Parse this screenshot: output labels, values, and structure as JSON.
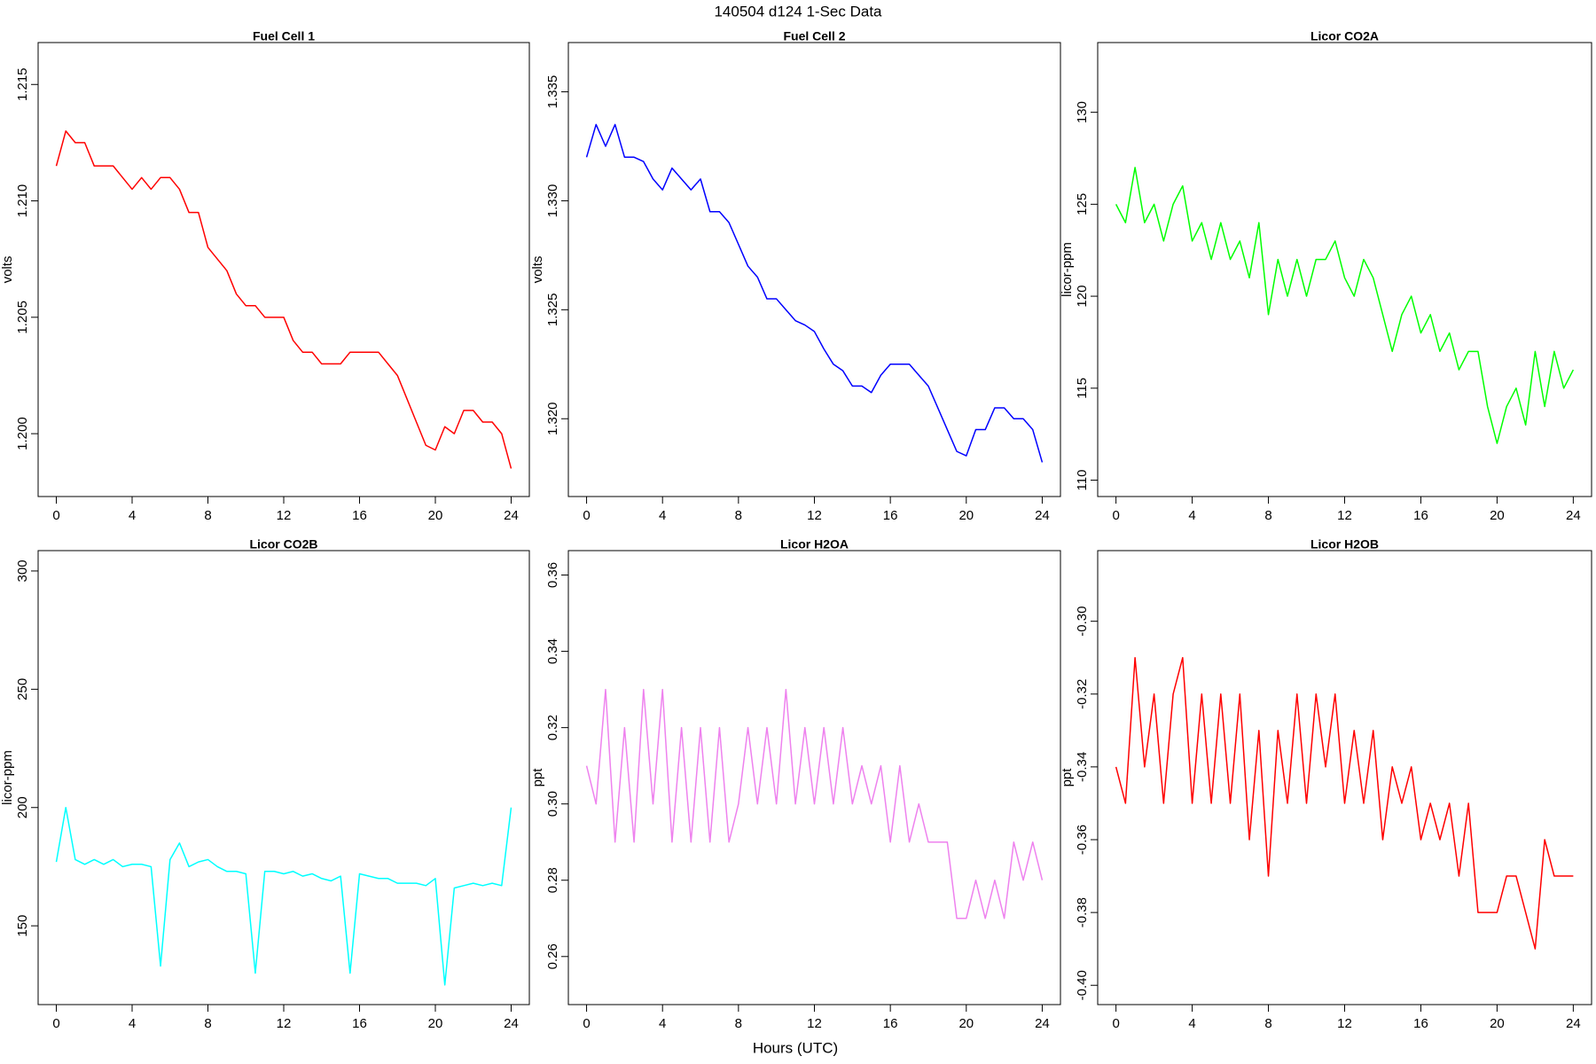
{
  "title": "140504   d124   1-Sec Data",
  "x_label": "Hours (UTC)",
  "chart_data": [
    {
      "type": "line",
      "title": "Fuel Cell 1",
      "y_label": "volts",
      "x": [
        0,
        0.5,
        1,
        1.5,
        2,
        2.5,
        3,
        3.5,
        4,
        4.5,
        5,
        5.5,
        6,
        6.5,
        7,
        7.5,
        8,
        8.5,
        9,
        9.5,
        10,
        10.5,
        11,
        11.5,
        12,
        12.5,
        13,
        13.5,
        14,
        14.5,
        15,
        15.5,
        16,
        16.5,
        17,
        17.5,
        18,
        18.5,
        19,
        19.5,
        20,
        20.5,
        21,
        21.5,
        22,
        22.5,
        23,
        23.5,
        24
      ],
      "series": [
        {
          "name": "Fuel Cell 1",
          "color": "#ff0000",
          "values": [
            1.2115,
            1.213,
            1.2125,
            1.2125,
            1.2115,
            1.2115,
            1.2115,
            1.211,
            1.2105,
            1.211,
            1.2105,
            1.211,
            1.211,
            1.2105,
            1.2095,
            1.2095,
            1.208,
            1.2075,
            1.207,
            1.206,
            1.2055,
            1.2055,
            1.205,
            1.205,
            1.205,
            1.204,
            1.2035,
            1.2035,
            1.203,
            1.203,
            1.203,
            1.2035,
            1.2035,
            1.2035,
            1.2035,
            1.203,
            1.2025,
            1.2015,
            1.2005,
            1.1995,
            1.1993,
            1.2003,
            1.2,
            1.201,
            1.201,
            1.2005,
            1.2005,
            1.2,
            1.1985
          ]
        }
      ],
      "xlim": [
        -0.96,
        24.96
      ],
      "xticks": [
        0,
        4,
        8,
        12,
        16,
        20,
        24
      ],
      "ylim": [
        1.1973,
        1.2168
      ],
      "yticks": [
        {
          "value": 1.2,
          "label": "1.200"
        },
        1.205,
        {
          "value": 1.21,
          "label": "1.210"
        },
        1.215
      ]
    },
    {
      "type": "line",
      "title": "Fuel Cell 2",
      "y_label": "volts",
      "x": [
        0,
        0.5,
        1,
        1.5,
        2,
        2.5,
        3,
        3.5,
        4,
        4.5,
        5,
        5.5,
        6,
        6.5,
        7,
        7.5,
        8,
        8.5,
        9,
        9.5,
        10,
        10.5,
        11,
        11.5,
        12,
        12.5,
        13,
        13.5,
        14,
        14.5,
        15,
        15.5,
        16,
        16.5,
        17,
        17.5,
        18,
        18.5,
        19,
        19.5,
        20,
        20.5,
        21,
        21.5,
        22,
        22.5,
        23,
        23.5,
        24
      ],
      "series": [
        {
          "name": "Fuel Cell 2",
          "color": "#0000ff",
          "values": [
            1.332,
            1.3335,
            1.3325,
            1.3335,
            1.332,
            1.332,
            1.3318,
            1.331,
            1.3305,
            1.3315,
            1.331,
            1.3305,
            1.331,
            1.3295,
            1.3295,
            1.329,
            1.328,
            1.327,
            1.3265,
            1.3255,
            1.3255,
            1.325,
            1.3245,
            1.3243,
            1.324,
            1.3232,
            1.3225,
            1.3222,
            1.3215,
            1.3215,
            1.3212,
            1.322,
            1.3225,
            1.3225,
            1.3225,
            1.322,
            1.3215,
            1.3205,
            1.3195,
            1.3185,
            1.3183,
            1.3195,
            1.3195,
            1.3205,
            1.3205,
            1.32,
            1.32,
            1.3195,
            1.318
          ]
        }
      ],
      "xlim": [
        -0.96,
        24.96
      ],
      "xticks": [
        0,
        4,
        8,
        12,
        16,
        20,
        24
      ],
      "ylim": [
        1.31643,
        1.33726
      ],
      "yticks": [
        {
          "value": 1.32,
          "label": "1.320"
        },
        1.325,
        {
          "value": 1.33,
          "label": "1.330"
        },
        1.335
      ]
    },
    {
      "type": "line",
      "title": "Licor CO2A",
      "y_label": "licor-ppm",
      "x": [
        0,
        0.5,
        1,
        1.5,
        2,
        2.5,
        3,
        3.5,
        4,
        4.5,
        5,
        5.5,
        6,
        6.5,
        7,
        7.5,
        8,
        8.5,
        9,
        9.5,
        10,
        10.5,
        11,
        11.5,
        12,
        12.5,
        13,
        13.5,
        14,
        14.5,
        15,
        15.5,
        16,
        16.5,
        17,
        17.5,
        18,
        18.5,
        19,
        19.5,
        20,
        20.5,
        21,
        21.5,
        22,
        22.5,
        23,
        23.5,
        24
      ],
      "series": [
        {
          "name": "Licor CO2A",
          "color": "#00ff00",
          "values": [
            125,
            124,
            127,
            124,
            125,
            123,
            125,
            126,
            123,
            124,
            122,
            124,
            122,
            123,
            121,
            124,
            119,
            122,
            120,
            122,
            120,
            122,
            122,
            123,
            121,
            120,
            122,
            121,
            119,
            117,
            119,
            120,
            118,
            119,
            117,
            118,
            116,
            117,
            117,
            114,
            112,
            114,
            115,
            113,
            117,
            114,
            117,
            115,
            116
          ]
        }
      ],
      "xlim": [
        -0.96,
        24.96
      ],
      "xticks": [
        0,
        4,
        8,
        12,
        16,
        20,
        24
      ],
      "ylim": [
        109.11,
        133.79
      ],
      "yticks": [
        110,
        115,
        120,
        125,
        130
      ]
    },
    {
      "type": "line",
      "title": "Licor CO2B",
      "y_label": "licor-ppm",
      "x": [
        0,
        0.5,
        1,
        1.5,
        2,
        2.5,
        3,
        3.5,
        4,
        4.5,
        5,
        5.5,
        6,
        6.5,
        7,
        7.5,
        8,
        8.5,
        9,
        9.5,
        10,
        10.5,
        11,
        11.5,
        12,
        12.5,
        13,
        13.5,
        14,
        14.5,
        15,
        15.5,
        16,
        16.5,
        17,
        17.5,
        18,
        18.5,
        19,
        19.5,
        20,
        20.5,
        21,
        21.5,
        22,
        22.5,
        23,
        23.5,
        24
      ],
      "series": [
        {
          "name": "Licor CO2B",
          "color": "#00ffff",
          "values": [
            177,
            200,
            178,
            176,
            178,
            176,
            178,
            175,
            176,
            176,
            175,
            133,
            178,
            185,
            175,
            177,
            178,
            175,
            173,
            173,
            172,
            130,
            173,
            173,
            172,
            173,
            171,
            172,
            170,
            169,
            171,
            130,
            172,
            171,
            170,
            170,
            168,
            168,
            168,
            167,
            170,
            125,
            166,
            167,
            168,
            167,
            168,
            167,
            200
          ]
        }
      ],
      "xlim": [
        -0.96,
        24.96
      ],
      "xticks": [
        0,
        4,
        8,
        12,
        16,
        20,
        24
      ],
      "ylim": [
        116.7,
        308.6
      ],
      "yticks": [
        150,
        200,
        250,
        300
      ]
    },
    {
      "type": "line",
      "title": "Licor H2OA",
      "y_label": "ppt",
      "x": [
        0,
        0.5,
        1,
        1.5,
        2,
        2.5,
        3,
        3.5,
        4,
        4.5,
        5,
        5.5,
        6,
        6.5,
        7,
        7.5,
        8,
        8.5,
        9,
        9.5,
        10,
        10.5,
        11,
        11.5,
        12,
        12.5,
        13,
        13.5,
        14,
        14.5,
        15,
        15.5,
        16,
        16.5,
        17,
        17.5,
        18,
        18.5,
        19,
        19.5,
        20,
        20.5,
        21,
        21.5,
        22,
        22.5,
        23,
        23.5,
        24
      ],
      "series": [
        {
          "name": "Licor H2OA",
          "color": "#ee82ee",
          "values": [
            0.31,
            0.3,
            0.33,
            0.29,
            0.32,
            0.29,
            0.33,
            0.3,
            0.33,
            0.29,
            0.32,
            0.29,
            0.32,
            0.29,
            0.32,
            0.29,
            0.3,
            0.32,
            0.3,
            0.32,
            0.3,
            0.33,
            0.3,
            0.32,
            0.3,
            0.32,
            0.3,
            0.32,
            0.3,
            0.31,
            0.3,
            0.31,
            0.29,
            0.31,
            0.29,
            0.3,
            0.29,
            0.29,
            0.29,
            0.27,
            0.27,
            0.28,
            0.27,
            0.28,
            0.27,
            0.29,
            0.28,
            0.29,
            0.28
          ]
        }
      ],
      "xlim": [
        -0.96,
        24.96
      ],
      "xticks": [
        0,
        4,
        8,
        12,
        16,
        20,
        24
      ],
      "ylim": [
        0.2474,
        0.3664
      ],
      "yticks": [
        0.26,
        0.28,
        {
          "value": 0.3,
          "label": "0.30"
        },
        0.32,
        0.34,
        0.36
      ]
    },
    {
      "type": "line",
      "title": "Licor H2OB",
      "y_label": "ppt",
      "x": [
        0,
        0.5,
        1,
        1.5,
        2,
        2.5,
        3,
        3.5,
        4,
        4.5,
        5,
        5.5,
        6,
        6.5,
        7,
        7.5,
        8,
        8.5,
        9,
        9.5,
        10,
        10.5,
        11,
        11.5,
        12,
        12.5,
        13,
        13.5,
        14,
        14.5,
        15,
        15.5,
        16,
        16.5,
        17,
        17.5,
        18,
        18.5,
        19,
        19.5,
        20,
        20.5,
        21,
        21.5,
        22,
        22.5,
        23,
        23.5,
        24
      ],
      "series": [
        {
          "name": "Licor H2OB",
          "color": "#ff0000",
          "values": [
            -0.34,
            -0.35,
            -0.31,
            -0.34,
            -0.32,
            -0.35,
            -0.32,
            -0.31,
            -0.35,
            -0.32,
            -0.35,
            -0.32,
            -0.35,
            -0.32,
            -0.36,
            -0.33,
            -0.37,
            -0.33,
            -0.35,
            -0.32,
            -0.35,
            -0.32,
            -0.34,
            -0.32,
            -0.35,
            -0.33,
            -0.35,
            -0.33,
            -0.36,
            -0.34,
            -0.35,
            -0.34,
            -0.36,
            -0.35,
            -0.36,
            -0.35,
            -0.37,
            -0.35,
            -0.38,
            -0.38,
            -0.38,
            -0.37,
            -0.37,
            -0.38,
            -0.39,
            -0.36,
            -0.37,
            -0.37,
            -0.37
          ]
        }
      ],
      "xlim": [
        -0.96,
        24.96
      ],
      "xticks": [
        0,
        4,
        8,
        12,
        16,
        20,
        24
      ],
      "ylim": [
        -0.4053,
        -0.2806
      ],
      "yticks": [
        {
          "value": -0.4,
          "label": "-0.40"
        },
        -0.38,
        -0.36,
        -0.34,
        -0.32,
        {
          "value": -0.3,
          "label": "-0.30"
        }
      ]
    }
  ]
}
